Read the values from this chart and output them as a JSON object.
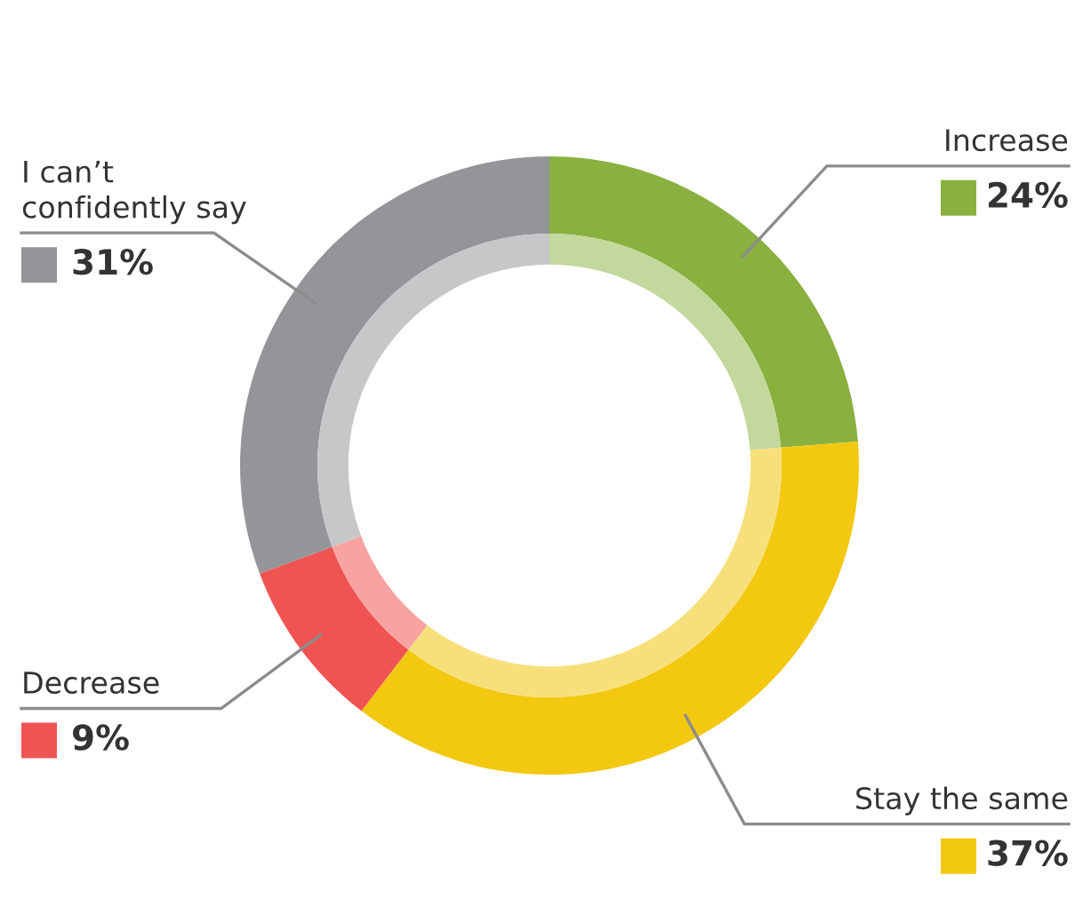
{
  "chart_data": {
    "type": "donut",
    "categories": [
      "Increase",
      "Stay the same",
      "Decrease",
      "I can’t\nconfidently say"
    ],
    "value_labels": [
      "24%",
      "37%",
      "9%",
      "31%"
    ],
    "series": [
      {
        "values": [
          24,
          37,
          9,
          31
        ],
        "colors": [
          "#8ab03f",
          "#f2c811",
          "#f05452",
          "#939598"
        ]
      },
      {
        "values": [
          24,
          37,
          9,
          31
        ],
        "colors": [
          "#c2d89c",
          "#f7e07c",
          "#f7a3a1",
          "#c6c7c9"
        ]
      }
    ]
  }
}
